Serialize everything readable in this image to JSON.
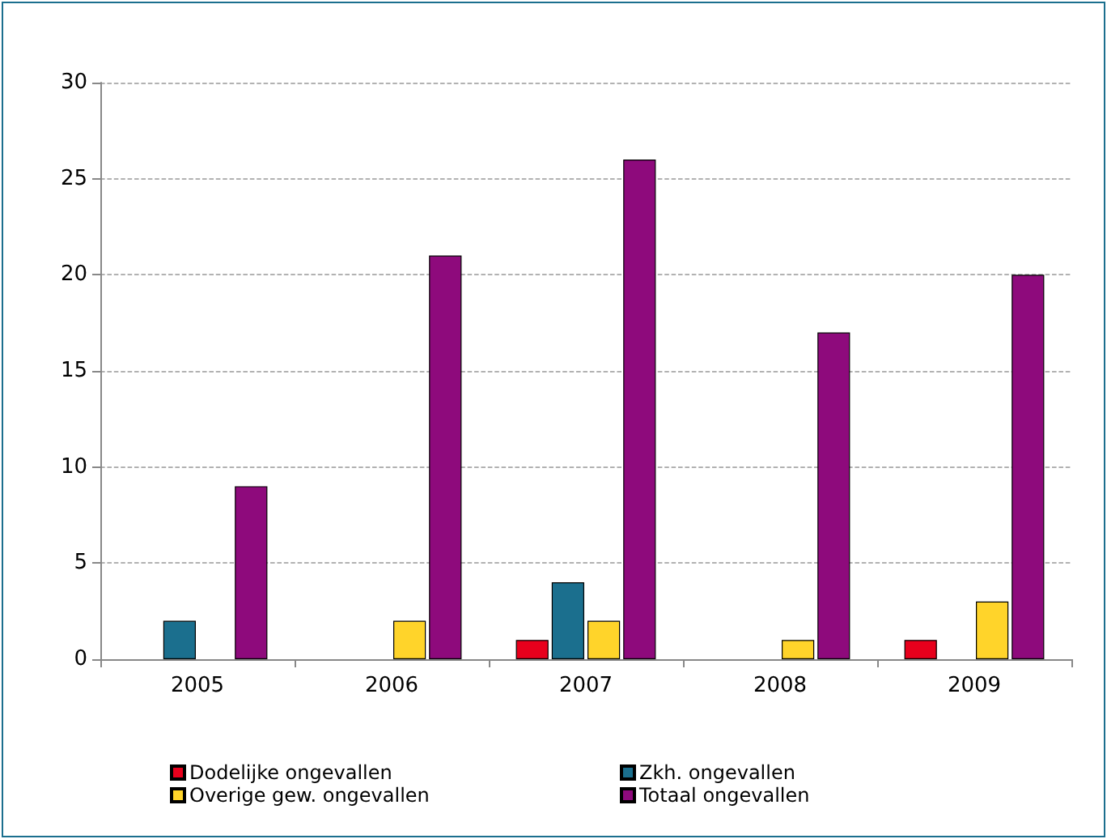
{
  "chart_data": {
    "type": "bar",
    "categories": [
      "2005",
      "2006",
      "2007",
      "2008",
      "2009"
    ],
    "series": [
      {
        "name": "Dodelijke ongevallen",
        "color": "#e8001c",
        "values": [
          0,
          0,
          1,
          0,
          1
        ]
      },
      {
        "name": "Zkh. ongevallen",
        "color": "#1b6f8e",
        "values": [
          2,
          0,
          4,
          0,
          0
        ]
      },
      {
        "name": "Overige gew. ongevallen",
        "color": "#ffd42a",
        "values": [
          0,
          2,
          2,
          1,
          3
        ]
      },
      {
        "name": "Totaal ongevallen",
        "color": "#8e0a7c",
        "values": [
          9,
          21,
          26,
          17,
          20
        ]
      }
    ],
    "ylim": [
      0,
      30
    ],
    "yticks": [
      0,
      5,
      10,
      15,
      20,
      25,
      30
    ],
    "grid": "y",
    "legend": "bottom"
  }
}
